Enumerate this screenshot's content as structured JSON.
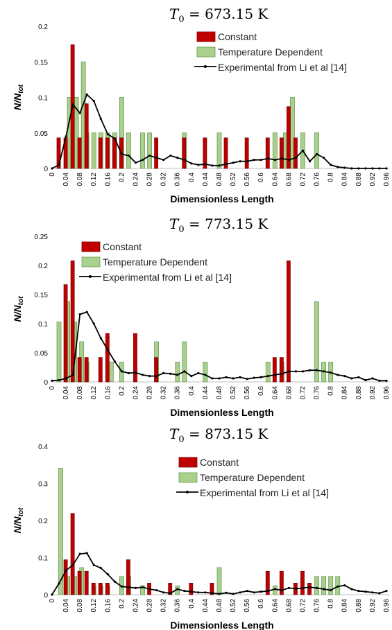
{
  "colors": {
    "constant": "#c00000",
    "constant_edge": "#7a0000",
    "tempdep": "#a9d18e",
    "tempdep_edge": "#6e9a53",
    "exp": "#000000"
  },
  "shared": {
    "xlabel": "Dimensionless Length",
    "ylabel_main": "N/N",
    "ylabel_sub": "tot",
    "title_prefix": "T",
    "title_sub": "0",
    "legend": [
      "Constant",
      "Temperature Dependent",
      "Experimental from Li et al [14]"
    ],
    "xticks": [
      "0",
      "0.04",
      "0.08",
      "0.12",
      "0.16",
      "0.2",
      "0.24",
      "0.28",
      "0.32",
      "0.36",
      "0.4",
      "0.44",
      "0.48",
      "0.52",
      "0.56",
      "0.6",
      "0.64",
      "0.68",
      "0.72",
      "0.76",
      "0.8",
      "0.84",
      "0.88",
      "0.92",
      "0.96"
    ]
  },
  "chart_data": [
    {
      "type": "bar",
      "title": "= 673.15 K",
      "xlabel": "Dimensionless Length",
      "ylabel": "N/Ntot",
      "ylim": [
        0,
        0.2
      ],
      "yticks": [
        "0",
        "0.05",
        "0.1",
        "0.15",
        "0.2"
      ],
      "xlim": [
        0,
        0.97
      ],
      "legend_position": "top-right",
      "series": [
        {
          "name": "Constant",
          "type": "bar",
          "x": [
            0.02,
            0.04,
            0.06,
            0.08,
            0.1,
            0.14,
            0.16,
            0.18,
            0.2,
            0.3,
            0.38,
            0.44,
            0.5,
            0.56,
            0.62,
            0.66,
            0.68,
            0.7
          ],
          "values": [
            0.043,
            0.043,
            0.174,
            0.043,
            0.091,
            0.043,
            0.043,
            0.043,
            0.043,
            0.043,
            0.043,
            0.043,
            0.043,
            0.043,
            0.043,
            0.043,
            0.087,
            0.043
          ]
        },
        {
          "name": "Temperature Dependent",
          "type": "bar",
          "x": [
            0.05,
            0.07,
            0.09,
            0.1,
            0.12,
            0.14,
            0.16,
            0.18,
            0.2,
            0.22,
            0.26,
            0.28,
            0.38,
            0.48,
            0.64,
            0.67,
            0.69,
            0.72,
            0.76
          ],
          "values": [
            0.1,
            0.1,
            0.15,
            0.05,
            0.05,
            0.05,
            0.05,
            0.05,
            0.1,
            0.05,
            0.05,
            0.05,
            0.05,
            0.05,
            0.05,
            0.05,
            0.1,
            0.05,
            0.05
          ]
        },
        {
          "name": "Experimental from Li et al [14]",
          "type": "line",
          "x": [
            0,
            0.02,
            0.04,
            0.06,
            0.08,
            0.1,
            0.12,
            0.14,
            0.16,
            0.18,
            0.2,
            0.22,
            0.24,
            0.26,
            0.28,
            0.3,
            0.32,
            0.34,
            0.36,
            0.38,
            0.4,
            0.42,
            0.44,
            0.46,
            0.48,
            0.5,
            0.52,
            0.54,
            0.56,
            0.58,
            0.6,
            0.62,
            0.64,
            0.66,
            0.68,
            0.7,
            0.72,
            0.74,
            0.76,
            0.78,
            0.8,
            0.82,
            0.84,
            0.86,
            0.88,
            0.9,
            0.92,
            0.94,
            0.96
          ],
          "values": [
            0,
            0.005,
            0.045,
            0.09,
            0.078,
            0.104,
            0.095,
            0.07,
            0.048,
            0.042,
            0.02,
            0.018,
            0.008,
            0.012,
            0.018,
            0.015,
            0.012,
            0.018,
            0.015,
            0.012,
            0.007,
            0.005,
            0.006,
            0.004,
            0.004,
            0.006,
            0.008,
            0.01,
            0.01,
            0.012,
            0.012,
            0.014,
            0.012,
            0.014,
            0.012,
            0.015,
            0.025,
            0.01,
            0.02,
            0.015,
            0.005,
            0.002,
            0.001,
            0,
            0,
            0,
            0,
            0,
            0
          ]
        }
      ]
    },
    {
      "type": "bar",
      "title": "= 773.15 K",
      "xlabel": "Dimensionless Length",
      "ylabel": "N/Ntot",
      "ylim": [
        0,
        0.25
      ],
      "yticks": [
        "0",
        "0.05",
        "0.1",
        "0.15",
        "0.2",
        "0.25"
      ],
      "xlim": [
        0,
        0.97
      ],
      "legend_position": "top-left",
      "series": [
        {
          "name": "Constant",
          "type": "bar",
          "x": [
            0.04,
            0.06,
            0.08,
            0.1,
            0.14,
            0.16,
            0.24,
            0.3,
            0.64,
            0.66,
            0.68
          ],
          "values": [
            0.167,
            0.208,
            0.042,
            0.042,
            0.042,
            0.083,
            0.083,
            0.042,
            0.042,
            0.042,
            0.208
          ]
        },
        {
          "name": "Temperature Dependent",
          "type": "bar",
          "x": [
            0.02,
            0.045,
            0.065,
            0.085,
            0.1,
            0.17,
            0.2,
            0.3,
            0.36,
            0.38,
            0.44,
            0.62,
            0.66,
            0.76,
            0.78,
            0.8
          ],
          "values": [
            0.103,
            0.138,
            0.103,
            0.069,
            0.034,
            0.034,
            0.034,
            0.069,
            0.034,
            0.069,
            0.034,
            0.034,
            0.034,
            0.138,
            0.034,
            0.034
          ]
        },
        {
          "name": "Experimental from Li et al [14]",
          "type": "line",
          "x": [
            0,
            0.02,
            0.04,
            0.06,
            0.08,
            0.1,
            0.12,
            0.14,
            0.16,
            0.18,
            0.2,
            0.22,
            0.24,
            0.26,
            0.28,
            0.3,
            0.32,
            0.34,
            0.36,
            0.38,
            0.4,
            0.42,
            0.44,
            0.46,
            0.48,
            0.5,
            0.52,
            0.54,
            0.56,
            0.58,
            0.6,
            0.62,
            0.64,
            0.66,
            0.68,
            0.7,
            0.72,
            0.74,
            0.76,
            0.78,
            0.8,
            0.82,
            0.84,
            0.86,
            0.88,
            0.9,
            0.92,
            0.94,
            0.96
          ],
          "values": [
            0.002,
            0.003,
            0.006,
            0.012,
            0.116,
            0.12,
            0.1,
            0.075,
            0.055,
            0.035,
            0.018,
            0.015,
            0.016,
            0.012,
            0.01,
            0.01,
            0.015,
            0.014,
            0.012,
            0.018,
            0.01,
            0.015,
            0.012,
            0.006,
            0.006,
            0.008,
            0.006,
            0.008,
            0.005,
            0.007,
            0.008,
            0.01,
            0.012,
            0.014,
            0.018,
            0.018,
            0.018,
            0.02,
            0.02,
            0.018,
            0.016,
            0.012,
            0.01,
            0.006,
            0.008,
            0.003,
            0.006,
            0.002,
            0.002
          ]
        }
      ]
    },
    {
      "type": "bar",
      "title": "= 873.15 K",
      "xlabel": "Dimensionless Length",
      "ylabel": "N/Ntot",
      "ylim": [
        0,
        0.4
      ],
      "yticks": [
        "0",
        "0.1",
        "0.2",
        "0.3",
        "0.4"
      ],
      "xlim": [
        0,
        0.97
      ],
      "legend_position": "top-right",
      "series": [
        {
          "name": "Constant",
          "type": "bar",
          "x": [
            0.04,
            0.06,
            0.08,
            0.1,
            0.12,
            0.14,
            0.16,
            0.22,
            0.28,
            0.34,
            0.4,
            0.46,
            0.62,
            0.66,
            0.7,
            0.72,
            0.74
          ],
          "values": [
            0.094,
            0.219,
            0.063,
            0.063,
            0.031,
            0.031,
            0.031,
            0.094,
            0.031,
            0.031,
            0.031,
            0.031,
            0.063,
            0.063,
            0.031,
            0.063,
            0.031
          ]
        },
        {
          "name": "Temperature Dependent",
          "type": "bar",
          "x": [
            0.025,
            0.045,
            0.065,
            0.085,
            0.12,
            0.14,
            0.16,
            0.2,
            0.22,
            0.26,
            0.36,
            0.48,
            0.64,
            0.76,
            0.78,
            0.8,
            0.82
          ],
          "values": [
            0.341,
            0.049,
            0.049,
            0.073,
            0.024,
            0.024,
            0.024,
            0.049,
            0.049,
            0.024,
            0.024,
            0.073,
            0.024,
            0.049,
            0.049,
            0.049,
            0.049
          ]
        },
        {
          "name": "Experimental from Li et al [14]",
          "type": "line",
          "x": [
            0,
            0.02,
            0.04,
            0.06,
            0.08,
            0.1,
            0.12,
            0.14,
            0.16,
            0.18,
            0.2,
            0.22,
            0.24,
            0.26,
            0.28,
            0.3,
            0.32,
            0.34,
            0.36,
            0.38,
            0.4,
            0.42,
            0.44,
            0.46,
            0.48,
            0.5,
            0.52,
            0.54,
            0.56,
            0.58,
            0.6,
            0.62,
            0.64,
            0.66,
            0.68,
            0.7,
            0.72,
            0.74,
            0.76,
            0.78,
            0.8,
            0.82,
            0.84,
            0.86,
            0.88,
            0.9,
            0.92,
            0.94,
            0.96
          ],
          "values": [
            0,
            0.03,
            0.065,
            0.08,
            0.11,
            0.112,
            0.08,
            0.072,
            0.055,
            0.035,
            0.022,
            0.02,
            0.018,
            0.02,
            0.015,
            0.012,
            0.006,
            0.004,
            0.015,
            0.01,
            0.008,
            0.006,
            0.006,
            0.004,
            0.002,
            0.005,
            0.002,
            0.006,
            0.01,
            0.006,
            0.008,
            0.01,
            0.015,
            0.012,
            0.018,
            0.016,
            0.018,
            0.02,
            0.018,
            0.015,
            0.012,
            0.022,
            0.025,
            0.015,
            0.01,
            0.008,
            0.006,
            0.004,
            0.01
          ]
        }
      ]
    }
  ]
}
